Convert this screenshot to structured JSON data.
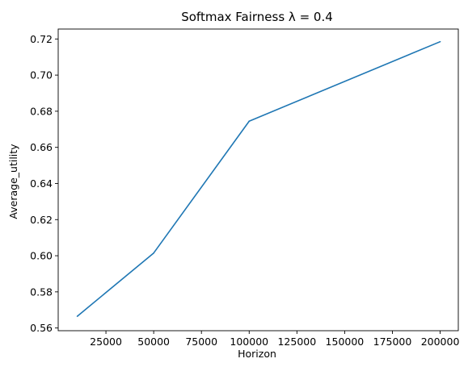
{
  "chart_data": {
    "type": "line",
    "title": "Softmax Fairness λ = 0.4",
    "xlabel": "Horizon",
    "ylabel": "Average_utility",
    "xlim": [
      0,
      209500
    ],
    "ylim": [
      0.5585,
      0.7255
    ],
    "x_ticks": [
      25000,
      50000,
      75000,
      100000,
      125000,
      150000,
      175000,
      200000
    ],
    "y_ticks": [
      0.56,
      0.58,
      0.6,
      0.62,
      0.64,
      0.66,
      0.68,
      0.7,
      0.72
    ],
    "y_tick_labels": [
      "0.56",
      "0.58",
      "0.60",
      "0.62",
      "0.64",
      "0.66",
      "0.68",
      "0.70",
      "0.72"
    ],
    "grid": false,
    "series": [
      {
        "color": "#1f77b4",
        "x": [
          10000,
          50000,
          100000,
          200000
        ],
        "y": [
          0.5665,
          0.6015,
          0.6745,
          0.7185
        ]
      }
    ]
  }
}
